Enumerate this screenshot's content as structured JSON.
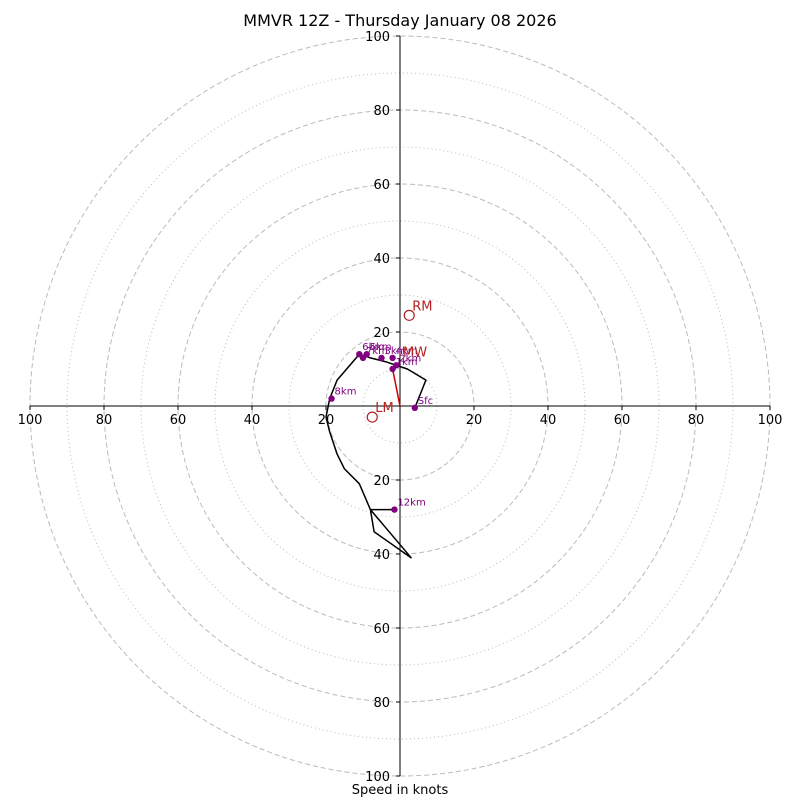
{
  "chart_data": {
    "type": "hodograph",
    "title": "MMVR 12Z - Thursday January 08 2026",
    "xlabel": "Speed in knots",
    "ylabel": "",
    "xlim": [
      -100,
      100
    ],
    "ylim": [
      -100,
      100
    ],
    "rings_dashed": [
      20,
      40,
      60,
      80,
      100
    ],
    "rings_dotted": [
      10,
      30,
      50,
      70,
      90
    ],
    "x_ticks": [
      {
        "value": -100,
        "label": "100"
      },
      {
        "value": -80,
        "label": "80"
      },
      {
        "value": -60,
        "label": "60"
      },
      {
        "value": -40,
        "label": "40"
      },
      {
        "value": -20,
        "label": "20"
      },
      {
        "value": 20,
        "label": "20"
      },
      {
        "value": 40,
        "label": "40"
      },
      {
        "value": 60,
        "label": "60"
      },
      {
        "value": 80,
        "label": "80"
      },
      {
        "value": 100,
        "label": "100"
      }
    ],
    "y_ticks": [
      {
        "value": 100,
        "label": "100"
      },
      {
        "value": 80,
        "label": "80"
      },
      {
        "value": 60,
        "label": "60"
      },
      {
        "value": 40,
        "label": "40"
      },
      {
        "value": 20,
        "label": "20"
      },
      {
        "value": -20,
        "label": "20"
      },
      {
        "value": -40,
        "label": "40"
      },
      {
        "value": -60,
        "label": "60"
      },
      {
        "value": -80,
        "label": "80"
      },
      {
        "value": -100,
        "label": "100"
      }
    ],
    "trace_color": "#000000",
    "wind_trace": [
      [
        4,
        -0.5
      ],
      [
        7,
        7
      ],
      [
        2,
        10
      ],
      [
        -4,
        12
      ],
      [
        -8,
        13
      ],
      [
        -11,
        14
      ],
      [
        -17,
        7
      ],
      [
        -19,
        2
      ],
      [
        -20,
        -3
      ],
      [
        -19,
        -7
      ],
      [
        -17,
        -13
      ],
      [
        -15,
        -17
      ],
      [
        -11,
        -21
      ],
      [
        -8,
        -28
      ],
      [
        -7,
        -34
      ],
      [
        3,
        -41
      ],
      [
        -8,
        -28
      ],
      [
        -1.5,
        -28
      ]
    ],
    "height_points": [
      {
        "label": "Sfc",
        "u": 4,
        "v": -0.5
      },
      {
        "label": "1km",
        "u": -2,
        "v": 10
      },
      {
        "label": "2km",
        "u": -1,
        "v": 11
      },
      {
        "label": "3km",
        "u": -5,
        "v": 13
      },
      {
        "label": "4km",
        "u": -2,
        "v": 13
      },
      {
        "label": "5km",
        "u": -9,
        "v": 14
      },
      {
        "label": "6km",
        "u": -11,
        "v": 14
      },
      {
        "label": "7km",
        "u": -10,
        "v": 13
      },
      {
        "label": "8km",
        "u": -18.5,
        "v": 2
      },
      {
        "label": "12km",
        "u": -1.5,
        "v": -28
      }
    ],
    "point_color": "#800080",
    "shear_vector": {
      "from": [
        0,
        0
      ],
      "to": [
        -2,
        10
      ],
      "color": "#cc0000"
    },
    "motion_markers": [
      {
        "label": "RM",
        "u": 2.5,
        "v": 24.5
      },
      {
        "label": "LM",
        "u": -7.5,
        "v": -3
      },
      {
        "label": "MW",
        "u": 0,
        "v": 12
      }
    ],
    "marker_color": "#b22222",
    "ring_color": "#bbbbbb",
    "axis_color": "#000000"
  }
}
